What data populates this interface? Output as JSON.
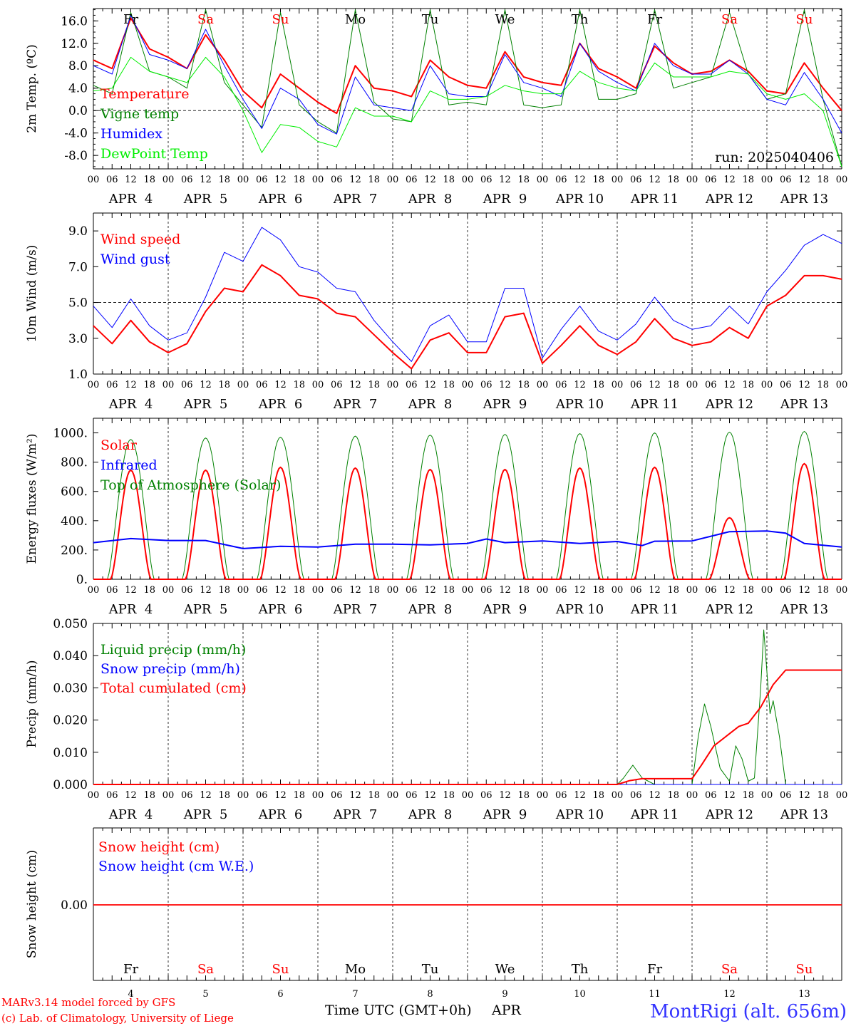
{
  "colors": {
    "red": "#ff0000",
    "blue": "#0000ff",
    "dgreen": "#008000",
    "lgreen": "#00ee00",
    "black": "#000000",
    "station": "#3333ff"
  },
  "time_axis": {
    "hour_labels": [
      "00",
      "06",
      "12",
      "18"
    ],
    "end_label": "00",
    "dates": [
      "APR  4",
      "APR  5",
      "APR  6",
      "APR  7",
      "APR  8",
      "APR  9",
      "APR 10",
      "APR 11",
      "APR 12",
      "APR 13"
    ],
    "weekdays": [
      "Fr",
      "Sa",
      "Su",
      "Mo",
      "Tu",
      "We",
      "Th",
      "Fr",
      "Sa",
      "Su"
    ],
    "weekend_flags": [
      false,
      true,
      true,
      false,
      false,
      false,
      false,
      false,
      true,
      true
    ],
    "day_numbers": [
      "4",
      "5",
      "6",
      "7",
      "8",
      "9",
      "10",
      "11",
      "12",
      "13"
    ],
    "xlabel": "Time UTC (GMT+0h)",
    "month": "APR"
  },
  "footer": {
    "model": "MARv3.14 model forced by GFS",
    "copyright": "(c) Lab. of Climatology, University of Liege",
    "station": "MontRigi (alt. 656m)"
  },
  "chart_data": [
    {
      "type": "line",
      "ylabel": "2m Temp. (ºC)",
      "ylim": [
        -10.4,
        18.2
      ],
      "ytick_values": [
        16,
        12,
        8,
        4,
        0,
        -4,
        -8
      ],
      "ytick_labels": [
        "16.0",
        "12.0",
        "8.0",
        "4.0",
        "0.0",
        "-4.0",
        "-8.0"
      ],
      "reference_line": 0,
      "annotation": "run: 2025040406",
      "x_hours": [
        0,
        6,
        12,
        18,
        24,
        30,
        36,
        42,
        48,
        54,
        60,
        66,
        72,
        78,
        84,
        90,
        96,
        102,
        108,
        114,
        120,
        126,
        132,
        138,
        144,
        150,
        156,
        162,
        168,
        174,
        180,
        186,
        192,
        198,
        204,
        210,
        216,
        222,
        228,
        234,
        240
      ],
      "series": [
        {
          "name": "Temperature",
          "color": "#ff0000",
          "width": 2,
          "values": [
            9,
            7.5,
            16.5,
            11,
            9.5,
            7.5,
            13.5,
            9,
            3.5,
            0.5,
            6.5,
            4,
            1.5,
            -0.5,
            8,
            4,
            3.5,
            2.5,
            9,
            6,
            4.5,
            4,
            10.5,
            6,
            5,
            4.5,
            12,
            7.5,
            6,
            4,
            11.5,
            8.5,
            6.5,
            7,
            9,
            7,
            3.5,
            3,
            8.5,
            4,
            0
          ]
        },
        {
          "name": "Vigne temp",
          "color": "#008000",
          "width": 1,
          "values": [
            4.5,
            3,
            17.5,
            7,
            6,
            4,
            18,
            5,
            1,
            -3,
            17.5,
            1,
            -2,
            -4,
            18,
            1.5,
            -1.5,
            -2,
            18,
            1,
            1.5,
            1,
            18,
            1,
            0.5,
            1,
            18,
            2,
            2,
            3,
            18,
            4,
            5,
            6,
            17.5,
            6.5,
            2,
            3,
            18,
            2,
            -10
          ]
        },
        {
          "name": "Humidex",
          "color": "#0000ff",
          "width": 1,
          "values": [
            8,
            6.5,
            17,
            10,
            9,
            7.5,
            14.5,
            8,
            2,
            -3.2,
            4,
            2,
            -2.5,
            -4.2,
            6,
            1,
            0.5,
            0,
            8,
            3,
            2.5,
            2.5,
            10,
            5,
            4,
            2.5,
            12,
            7,
            5,
            3.5,
            12,
            8,
            6.5,
            6.5,
            9,
            6.5,
            2,
            1,
            6.8,
            2,
            -4
          ]
        },
        {
          "name": "DewPoint Temp",
          "color": "#00ee00",
          "width": 1,
          "values": [
            3.5,
            4,
            9.5,
            7,
            6,
            5,
            9.5,
            6,
            0,
            -7.5,
            -2.5,
            -3,
            -5.5,
            -6.5,
            0.5,
            -1,
            -1,
            -2,
            3.5,
            2,
            2,
            2.5,
            4.5,
            3.5,
            3,
            3,
            7,
            5,
            4,
            3.5,
            8.5,
            6,
            6,
            6,
            7,
            6.5,
            3,
            2,
            3,
            0,
            -10
          ]
        }
      ]
    },
    {
      "type": "line",
      "ylabel": "10m Wind (m/s)",
      "ylim": [
        1.0,
        10.0
      ],
      "ytick_values": [
        9,
        7,
        5,
        3,
        1
      ],
      "ytick_labels": [
        "9.0",
        "7.0",
        "5.0",
        "3.0",
        "1.0"
      ],
      "reference_line": 5,
      "x_hours": [
        0,
        6,
        12,
        18,
        24,
        30,
        36,
        42,
        48,
        54,
        60,
        66,
        72,
        78,
        84,
        90,
        96,
        102,
        108,
        114,
        120,
        126,
        132,
        138,
        144,
        150,
        156,
        162,
        168,
        174,
        180,
        186,
        192,
        198,
        204,
        210,
        216,
        222,
        228,
        234,
        240
      ],
      "series": [
        {
          "name": "Wind speed",
          "color": "#ff0000",
          "width": 2,
          "values": [
            3.7,
            2.7,
            4.0,
            2.8,
            2.2,
            2.7,
            4.5,
            5.8,
            5.6,
            7.1,
            6.5,
            5.4,
            5.2,
            4.4,
            4.2,
            3.2,
            2.2,
            1.3,
            2.9,
            3.3,
            2.2,
            2.2,
            4.2,
            4.4,
            1.6,
            2.6,
            3.7,
            2.6,
            2.1,
            2.8,
            4.1,
            3.0,
            2.6,
            2.8,
            3.6,
            3.0,
            4.8,
            5.4,
            6.5,
            6.5,
            6.3
          ]
        },
        {
          "name": "Wind gust",
          "color": "#0000ff",
          "width": 1,
          "values": [
            4.8,
            3.6,
            5.2,
            3.7,
            2.9,
            3.3,
            5.3,
            7.8,
            7.3,
            9.2,
            8.5,
            7.0,
            6.7,
            5.8,
            5.6,
            4.0,
            2.8,
            1.7,
            3.7,
            4.3,
            2.8,
            2.8,
            5.8,
            5.8,
            1.9,
            3.5,
            4.8,
            3.4,
            2.9,
            3.8,
            5.3,
            4.0,
            3.5,
            3.7,
            4.8,
            3.8,
            5.6,
            6.8,
            8.2,
            8.8,
            8.3
          ]
        }
      ]
    },
    {
      "type": "line",
      "ylabel": "Energy fluxes (W/m²)",
      "ylim": [
        0,
        1100
      ],
      "ytick_values": [
        1000,
        800,
        600,
        400,
        200,
        0
      ],
      "ytick_labels": [
        "1000.",
        "800.",
        "600.",
        "400.",
        "200.",
        "0."
      ],
      "peaks_by_day": {
        "top_of_atmosphere": [
          955,
          965,
          970,
          978,
          985,
          990,
          995,
          1000,
          1005,
          1010
        ],
        "solar": [
          745,
          745,
          765,
          760,
          750,
          750,
          760,
          765,
          420,
          790
        ]
      },
      "series": [
        {
          "name": "Solar",
          "color": "#ff0000",
          "width": 2
        },
        {
          "name": "Infrared",
          "color": "#0000ff",
          "width": 2,
          "x_hours": [
            0,
            12,
            24,
            36,
            48,
            60,
            72,
            84,
            96,
            108,
            120,
            126,
            132,
            144,
            156,
            168,
            176,
            180,
            192,
            204,
            216,
            222,
            228,
            240
          ],
          "values": [
            250,
            278,
            265,
            265,
            210,
            225,
            220,
            240,
            240,
            235,
            245,
            275,
            250,
            262,
            245,
            258,
            230,
            260,
            262,
            325,
            330,
            315,
            245,
            220
          ]
        },
        {
          "name": "Top of Atmosphere (Solar)",
          "color": "#008000",
          "width": 1
        }
      ]
    },
    {
      "type": "line",
      "ylabel": "Precip (mm/h)",
      "ylim": [
        0,
        0.05
      ],
      "ytick_values": [
        0.05,
        0.04,
        0.03,
        0.02,
        0.01,
        0.0
      ],
      "ytick_labels": [
        "0.050",
        "0.040",
        "0.030",
        "0.020",
        "0.010",
        "0.000"
      ],
      "series": [
        {
          "name": "Liquid precip (mm/h)",
          "color": "#008000",
          "width": 1,
          "x_hours": [
            0,
            168,
            170,
            173,
            176,
            180,
            192,
            194,
            196,
            198,
            201,
            204,
            206,
            208,
            210,
            212,
            214,
            215,
            217,
            218,
            220,
            222,
            224,
            240
          ],
          "values": [
            0,
            0,
            0.002,
            0.006,
            0.002,
            0,
            0,
            0.015,
            0.025,
            0.018,
            0.005,
            0.001,
            0.012,
            0.008,
            0.001,
            0.002,
            0.03,
            0.048,
            0.022,
            0.026,
            0.015,
            0,
            0,
            0
          ]
        },
        {
          "name": "Snow precip (mm/h)",
          "color": "#0000ff",
          "width": 1,
          "x_hours": [
            0,
            240
          ],
          "values": [
            0,
            0
          ]
        },
        {
          "name": "Total cumulated (cm)",
          "color": "#ff0000",
          "width": 2,
          "x_hours": [
            0,
            168,
            172,
            176,
            192,
            195,
            199,
            203,
            207,
            210,
            214,
            218,
            222,
            240
          ],
          "values": [
            0,
            0,
            0.0012,
            0.0018,
            0.0018,
            0.006,
            0.012,
            0.015,
            0.018,
            0.019,
            0.024,
            0.031,
            0.0355,
            0.0355
          ]
        }
      ]
    },
    {
      "type": "line",
      "ylabel": "Snow height (cm)",
      "ytick_values": [
        0
      ],
      "ytick_labels": [
        "0.00"
      ],
      "series": [
        {
          "name": "Snow height (cm)",
          "color": "#ff0000",
          "width": 1.5,
          "x_hours": [
            0,
            240
          ],
          "values": [
            0,
            0
          ]
        },
        {
          "name": "Snow height (cm W.E.)",
          "color": "#0000ff",
          "width": 1,
          "x_hours": [
            0,
            240
          ],
          "values": [
            0,
            0
          ]
        }
      ]
    }
  ]
}
